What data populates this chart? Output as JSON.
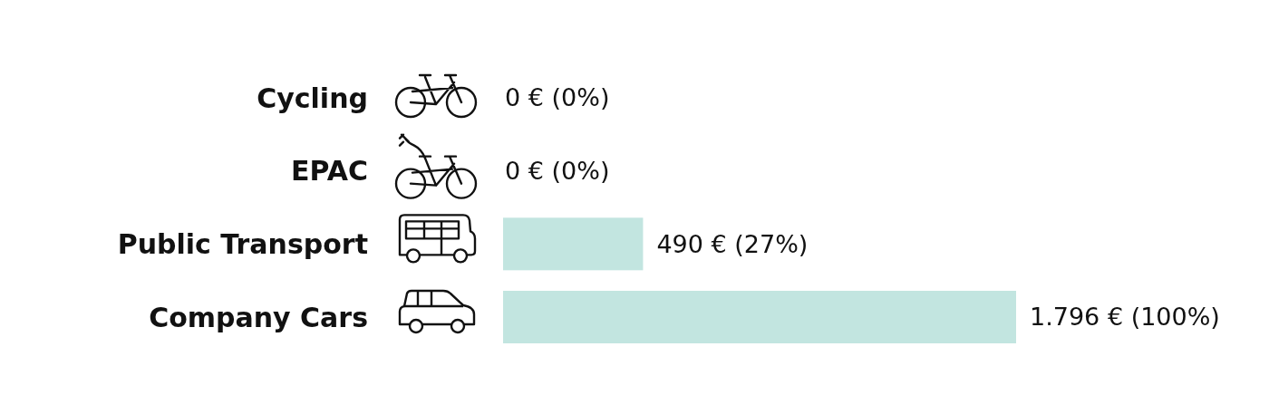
{
  "chart_data": {
    "type": "bar",
    "orientation": "horizontal",
    "categories": [
      "Cycling",
      "EPAC",
      "Public Transport",
      "Company Cars"
    ],
    "values": [
      0,
      0,
      490,
      1796
    ],
    "color": "#c2e5e0",
    "value_labels": [
      "0 € (0%)",
      "0 € (0%)",
      "490 € (27%)",
      "1.796 € (100%)"
    ]
  }
}
